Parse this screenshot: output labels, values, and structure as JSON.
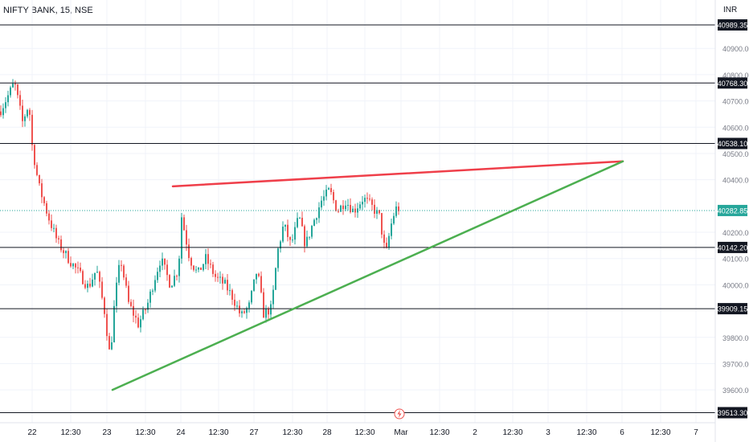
{
  "header": {
    "title": "NIFTY BANK, 15, NSE",
    "currency": "INR"
  },
  "chart_data": {
    "type": "candlestick",
    "title": "NIFTY BANK, 15, NSE",
    "currency": "INR",
    "ylim": [
      39500,
      41040
    ],
    "y_ticks": [
      {
        "value": 40900,
        "label": "40900.00"
      },
      {
        "value": 40800,
        "label": "40800.00"
      },
      {
        "value": 40700,
        "label": "40700.00"
      },
      {
        "value": 40600,
        "label": "40600.00"
      },
      {
        "value": 40500,
        "label": "40500.00"
      },
      {
        "value": 40400,
        "label": "40400.00"
      },
      {
        "value": 40200,
        "label": "40200.00"
      },
      {
        "value": 40100,
        "label": "40100.00"
      },
      {
        "value": 40000,
        "label": "40000.00"
      },
      {
        "value": 39800,
        "label": "39800.00"
      },
      {
        "value": 39700,
        "label": "39700.00"
      },
      {
        "value": 39600,
        "label": "39600.00"
      }
    ],
    "x_ticks": [
      "22",
      "12:30",
      "23",
      "12:30",
      "24",
      "12:30",
      "27",
      "12:30",
      "28",
      "12:30",
      "Mar",
      "12:30",
      "2",
      "12:30",
      "3",
      "12:30",
      "6",
      "12:30",
      "7"
    ],
    "horizontal_levels": [
      {
        "value": 40989.35,
        "label": "40989.35"
      },
      {
        "value": 40768.3,
        "label": "40768.30"
      },
      {
        "value": 40538.1,
        "label": "40538.10"
      },
      {
        "value": 40142.2,
        "label": "40142.20"
      },
      {
        "value": 39909.15,
        "label": "39909.15"
      },
      {
        "value": 39513.3,
        "label": "39513.30"
      }
    ],
    "current_price": {
      "value": 40282.85,
      "label": "40282.85",
      "color": "#26a69a"
    },
    "trendlines": [
      {
        "color": "#ef3f4a",
        "from": {
          "x_index": 0,
          "price": 40375
        },
        "to": {
          "x_index": 1,
          "price": 40470
        }
      },
      {
        "color": "#4caf50",
        "from": {
          "x_index": 0,
          "price": 39600
        },
        "to": {
          "x_index": 1,
          "price": 40470
        }
      }
    ],
    "colors": {
      "up": "#26a69a",
      "down": "#ef5350",
      "levels": "#131722",
      "grid": "#f0f3fa"
    },
    "event_marker": "lightning-icon"
  }
}
